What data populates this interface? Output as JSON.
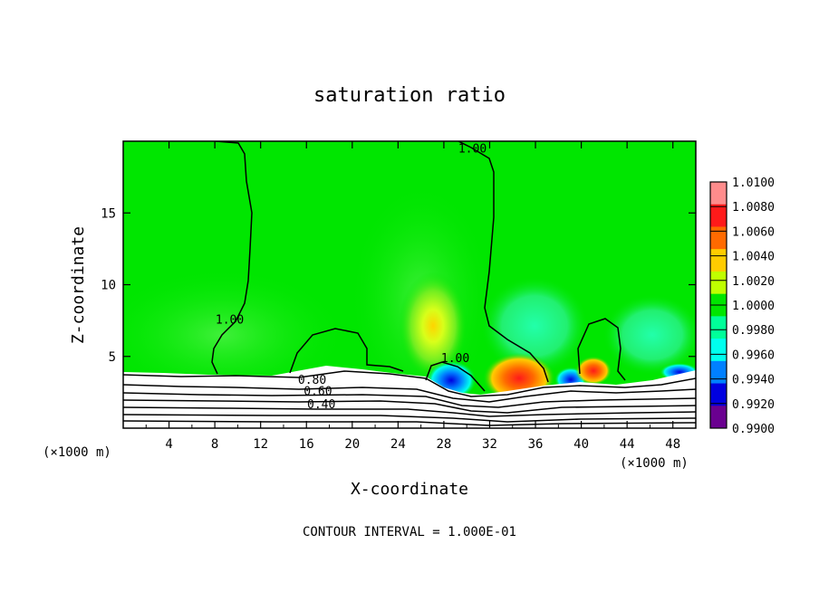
{
  "chart_data": {
    "type": "heatmap",
    "title": "saturation ratio",
    "xlabel": "X-coordinate",
    "ylabel": "Z-coordinate",
    "x_unit_label": "(×1000 m)",
    "x_unit_label_right": "(×1000 m)",
    "xlim": [
      0,
      50
    ],
    "ylim": [
      0,
      20
    ],
    "x_ticks": [
      4,
      8,
      12,
      16,
      20,
      24,
      28,
      32,
      36,
      40,
      44,
      48
    ],
    "y_ticks": [
      5,
      10,
      15
    ],
    "footer": "CONTOUR INTERVAL = 1.000E-01",
    "colorbar": {
      "labels": [
        "1.0100",
        "1.0080",
        "1.0060",
        "1.0040",
        "1.0020",
        "1.0000",
        "0.9980",
        "0.9960",
        "0.9940",
        "0.9920",
        "0.9900"
      ],
      "colors": [
        "#ff8c8c",
        "#ff1a1a",
        "#ff6a00",
        "#ffcc00",
        "#bfff00",
        "#00e600",
        "#00ff99",
        "#00ffee",
        "#0080ff",
        "#0000e0",
        "#6a0090"
      ]
    },
    "contour_labels": [
      {
        "text": "1.00",
        "x": 30.5,
        "z": 19.2
      },
      {
        "text": "1.00",
        "x": 9.3,
        "z": 7.3
      },
      {
        "text": "1.00",
        "x": 29.0,
        "z": 4.6
      },
      {
        "text": "0.80",
        "x": 16.5,
        "z": 3.1
      },
      {
        "text": "0.60",
        "x": 17.0,
        "z": 2.3
      },
      {
        "text": "0.40",
        "x": 17.3,
        "z": 1.4
      }
    ]
  }
}
